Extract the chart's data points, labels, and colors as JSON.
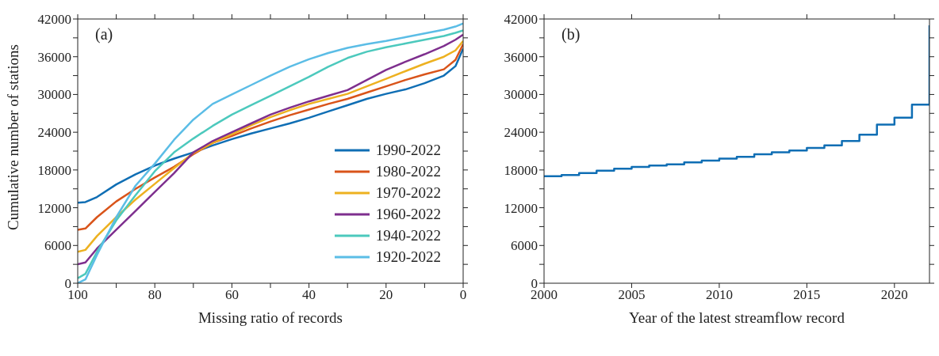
{
  "chart_data": [
    {
      "type": "line",
      "xlabel": "Missing ratio of records",
      "ylabel": "Cumulative number of stations",
      "annotations": [
        "(a)"
      ],
      "x": [
        100,
        98,
        95,
        90,
        85,
        80,
        75,
        70,
        65,
        60,
        55,
        50,
        45,
        40,
        35,
        30,
        25,
        20,
        15,
        10,
        5,
        2,
        0
      ],
      "series": [
        {
          "name": "1990-2022",
          "color": "#0f6eb4",
          "values": [
            12800,
            12900,
            13700,
            15700,
            17300,
            18700,
            19800,
            20800,
            21900,
            22900,
            23800,
            24600,
            25400,
            26300,
            27300,
            28300,
            29300,
            30100,
            30800,
            31800,
            33000,
            34500,
            37300
          ]
        },
        {
          "name": "1980-2022",
          "color": "#d9541a",
          "values": [
            8500,
            8700,
            10500,
            13000,
            15000,
            16800,
            18500,
            20500,
            22300,
            23400,
            24600,
            25700,
            26700,
            27600,
            28500,
            29300,
            30300,
            31300,
            32300,
            33200,
            34000,
            35500,
            38000
          ]
        },
        {
          "name": "1970-2022",
          "color": "#edb120",
          "values": [
            5000,
            5300,
            7500,
            10500,
            13300,
            15800,
            18300,
            20700,
            22300,
            23700,
            25100,
            26400,
            27500,
            28500,
            29300,
            30100,
            31300,
            32500,
            33700,
            34900,
            36000,
            37000,
            38500
          ]
        },
        {
          "name": "1960-2022",
          "color": "#7e2f8e",
          "values": [
            3000,
            3300,
            5500,
            8500,
            11500,
            14500,
            17500,
            20800,
            22600,
            24000,
            25400,
            26800,
            27900,
            28900,
            29800,
            30700,
            32300,
            33900,
            35200,
            36400,
            37700,
            38700,
            39500
          ]
        },
        {
          "name": "1940-2022",
          "color": "#4cc9bd",
          "values": [
            800,
            1500,
            5000,
            10000,
            14000,
            17800,
            20800,
            23000,
            25000,
            26800,
            28300,
            29800,
            31300,
            32800,
            34400,
            35800,
            36800,
            37500,
            38100,
            38700,
            39300,
            39800,
            40200
          ]
        },
        {
          "name": "1920-2022",
          "color": "#5bbde6",
          "values": [
            0,
            600,
            4500,
            10500,
            15500,
            19000,
            22800,
            26000,
            28500,
            30000,
            31500,
            33000,
            34400,
            35600,
            36600,
            37400,
            38000,
            38500,
            39100,
            39700,
            40300,
            40800,
            41300
          ]
        }
      ],
      "xlim": [
        100,
        0
      ],
      "xticks": [
        100,
        {
          "value": 90,
          "label": null
        },
        80,
        {
          "value": 70,
          "label": null
        },
        60,
        {
          "value": 50,
          "label": null
        },
        40,
        {
          "value": 30,
          "label": null
        },
        20,
        {
          "value": 10,
          "label": null
        },
        0
      ],
      "ylim": [
        0,
        42000
      ],
      "yticks": [
        0,
        {
          "value": 3000,
          "label": null
        },
        6000,
        {
          "value": 9000,
          "label": null
        },
        12000,
        {
          "value": 15000,
          "label": null
        },
        18000,
        {
          "value": 21000,
          "label": null
        },
        24000,
        {
          "value": 27000,
          "label": null
        },
        30000,
        {
          "value": 33000,
          "label": null
        },
        36000,
        {
          "value": 39000,
          "label": null
        },
        42000
      ],
      "legend": "bottom right",
      "grid": false
    },
    {
      "type": "step",
      "xlabel": "Year of the latest streamflow record",
      "annotations": [
        "(b)"
      ],
      "x": [
        2000,
        2001,
        2002,
        2003,
        2004,
        2005,
        2006,
        2007,
        2008,
        2009,
        2010,
        2011,
        2012,
        2013,
        2014,
        2015,
        2016,
        2017,
        2018,
        2019,
        2020,
        2021,
        2022
      ],
      "series": [
        {
          "color": "#0f6eb4",
          "values": [
            17000,
            17200,
            17500,
            17900,
            18200,
            18500,
            18700,
            18900,
            19200,
            19500,
            19800,
            20100,
            20500,
            20800,
            21100,
            21500,
            21900,
            22600,
            23600,
            25200,
            26300,
            28400,
            41000
          ]
        }
      ],
      "xlim": [
        2000,
        2022
      ],
      "xticks": [
        2000,
        2005,
        2010,
        2015,
        2020
      ],
      "ylim": [
        0,
        42000
      ],
      "yticks": [
        0,
        {
          "value": 3000,
          "label": null
        },
        6000,
        {
          "value": 9000,
          "label": null
        },
        12000,
        {
          "value": 15000,
          "label": null
        },
        18000,
        {
          "value": 21000,
          "label": null
        },
        24000,
        {
          "value": 27000,
          "label": null
        },
        30000,
        {
          "value": 33000,
          "label": null
        },
        36000,
        {
          "value": 39000,
          "label": null
        },
        42000
      ],
      "legend": false,
      "grid": false
    }
  ]
}
